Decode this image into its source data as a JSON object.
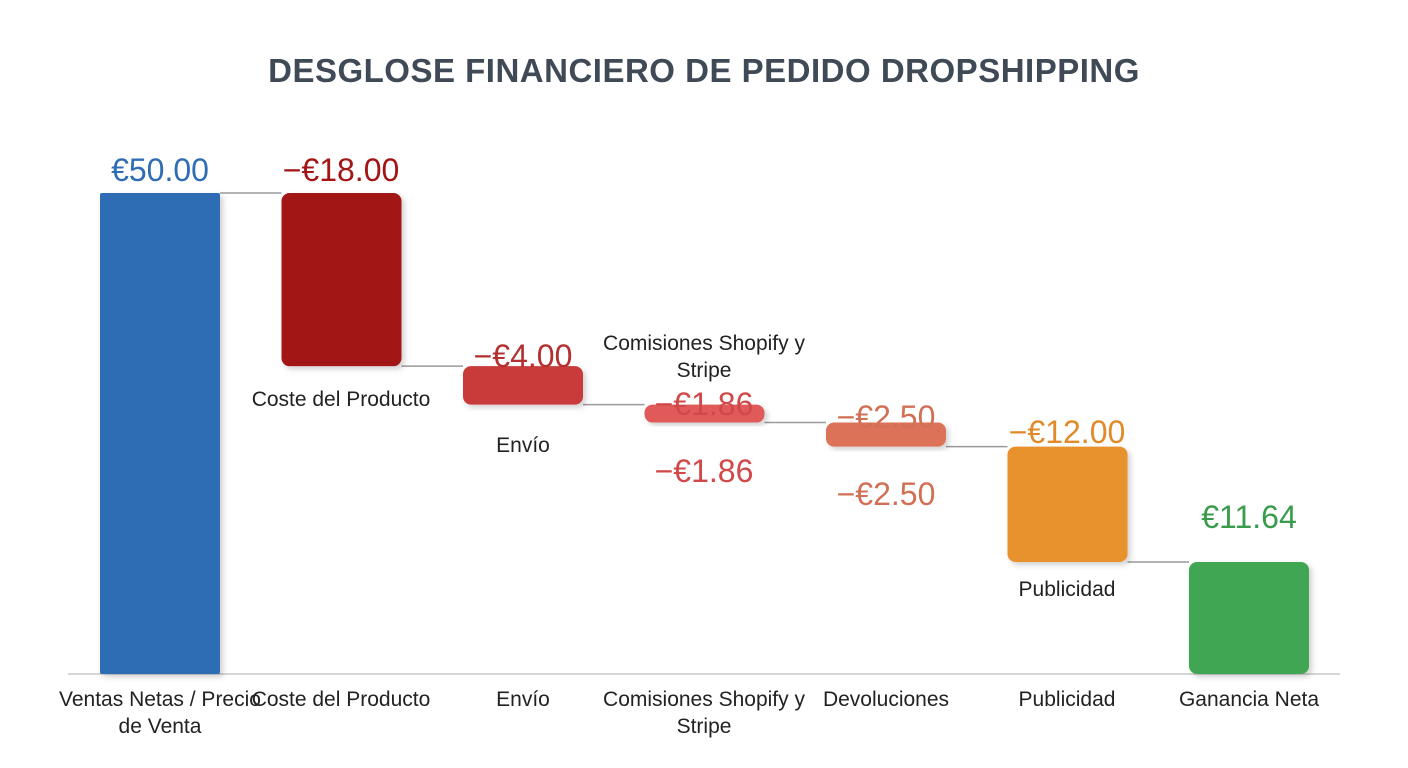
{
  "chart_data": {
    "type": "waterfall",
    "title": "DESGLOSE FINANCIERO DE PEDIDO DROPSHIPPING",
    "categories": [
      "Ventas Netas / Precio de Venta",
      "Coste del Producto",
      "Envío",
      "Comisiones Shopify y Stripe",
      "Devoluciones",
      "Publicidad",
      "Ganancia Neta"
    ],
    "values": [
      50.0,
      -18.0,
      -4.0,
      -1.86,
      -2.5,
      -12.0,
      11.64
    ],
    "value_labels": [
      "€50.00",
      "−€18.00",
      "−€4.00",
      "−€1.86",
      "−€2.50",
      "−€12.00",
      "€11.64"
    ],
    "colors": [
      "#2e6db4",
      "#a31515",
      "#c93a3a",
      "#e15a5a",
      "#dc7358",
      "#e8922f",
      "#3fa653"
    ],
    "label_colors": [
      "#2e6db4",
      "#a31515",
      "#b23030",
      "#d04848",
      "#d27055",
      "#e08a2a",
      "#3a9b4c"
    ],
    "inner_labels": {
      "coste": "Coste del Producto",
      "envio": "Envío",
      "comisiones": "Comisiones Shopify y Stripe",
      "publicidad": "Publicidad"
    },
    "duplicate_value_labels": {
      "comisiones": "−€1.86",
      "devoluciones": "−€2.50"
    },
    "ylim": [
      0,
      50
    ],
    "grid": false,
    "legend": "none"
  }
}
